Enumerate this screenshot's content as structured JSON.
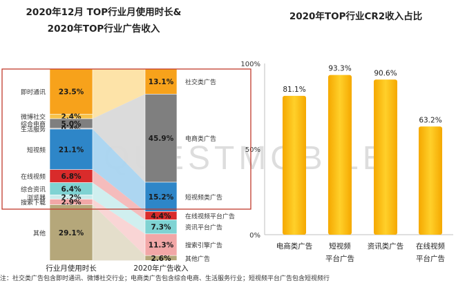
{
  "left_title": {
    "line1": "2020年12月 TOP行业月使用时长&",
    "line2": "2020年TOP行业广告收入"
  },
  "right_title": "2020年TOP行业CR2收入占比",
  "watermark": "QUESTMOBILE",
  "footnote": "注：社交类广告包含即时通讯、微博社交行业；电商类广告包含综合电商、生活服务行业；短视频平台广告包含短视频行",
  "colors": {
    "frame": "#c0392b",
    "right_bar": "#f7b500",
    "watermark": "#dddddd"
  },
  "chart_data": [
    {
      "type": "bar",
      "title": "2020年12月 TOP行业月使用时长& 2020年TOP行业广告收入",
      "stacks": [
        {
          "name": "行业月使用时长",
          "segments": [
            {
              "label": "即时通讯",
              "value": 23.5,
              "text": "23.5%",
              "color": "#f7a21b"
            },
            {
              "label": "微博社交",
              "value": 2.4,
              "text": "2.4%",
              "color": "#f6c24a"
            },
            {
              "label": "综合电商",
              "value": 5.0,
              "text": "5.0%",
              "color": "#7f7f7f"
            },
            {
              "label": "生活服务",
              "value": 0.4,
              "text": "0.4%",
              "color": "#a6a6a6"
            },
            {
              "label": "短视频",
              "value": 21.1,
              "text": "21.1%",
              "color": "#2e86c8"
            },
            {
              "label": "在线视频",
              "value": 6.8,
              "text": "6.8%",
              "color": "#d92b2b"
            },
            {
              "label": "综合资讯",
              "value": 6.4,
              "text": "6.4%",
              "color": "#7fd3d3"
            },
            {
              "label": "浏览器",
              "value": 2.2,
              "text": "2.2%",
              "color": "#c9ecec"
            },
            {
              "label": "搜索下载",
              "value": 2.9,
              "text": "2.9%",
              "color": "#f2a7a7"
            },
            {
              "label": "其他",
              "value": 29.1,
              "text": "29.1%",
              "color": "#b5a77a"
            }
          ]
        },
        {
          "name": "2020年广告收入",
          "segments": [
            {
              "label": "社交类广告",
              "value": 13.1,
              "text": "13.1%",
              "color": "#f7a21b"
            },
            {
              "label": "电商类广告",
              "value": 45.9,
              "text": "45.9%",
              "color": "#7f7f7f"
            },
            {
              "label": "短视频类广告",
              "value": 15.2,
              "text": "15.2%",
              "color": "#2e86c8"
            },
            {
              "label": "在线视频平台广告",
              "value": 4.4,
              "text": "4.4%",
              "color": "#d92b2b"
            },
            {
              "label": "资讯平台广告",
              "value": 7.3,
              "text": "7.3%",
              "color": "#7fd3d3"
            },
            {
              "label": "搜索引擎广告",
              "value": 11.3,
              "text": "11.3%",
              "color": "#f2a7a7"
            },
            {
              "label": "其他广告",
              "value": 2.6,
              "text": "2.6%",
              "color": "#b5a77a"
            }
          ]
        }
      ],
      "flows": [
        {
          "from": [
            0,
            1
          ],
          "to": 0,
          "color": "#fde2a3"
        },
        {
          "from": [
            2,
            3
          ],
          "to": 1,
          "color": "#d9d9d9"
        },
        {
          "from": [
            4,
            4
          ],
          "to": 2,
          "color": "#a9d4f0"
        },
        {
          "from": [
            5,
            5
          ],
          "to": 3,
          "color": "#f4b8b8"
        },
        {
          "from": [
            6,
            7
          ],
          "to": 4,
          "color": "#cdeeee"
        },
        {
          "from": [
            8,
            8
          ],
          "to": 5,
          "color": "#f9d3d3"
        },
        {
          "from": [
            9,
            9
          ],
          "to": 6,
          "color": "#e3dcc8"
        }
      ],
      "xlabels": [
        "行业月使用时长",
        "2020年广告收入"
      ],
      "ylim": [
        0,
        100
      ]
    },
    {
      "type": "bar",
      "title": "2020年TOP行业CR2收入占比",
      "categories": [
        [
          "电商类广告"
        ],
        [
          "短视频",
          "平台广告"
        ],
        [
          "资讯类广告"
        ],
        [
          "在线视频",
          "平台广告"
        ]
      ],
      "values": [
        81.1,
        93.3,
        90.6,
        63.2
      ],
      "value_labels": [
        "81.1%",
        "93.3%",
        "90.6%",
        "63.2%"
      ],
      "yticks": [
        "0%",
        "50%",
        "100%"
      ],
      "ylim": [
        0,
        100
      ],
      "grid": false
    }
  ]
}
